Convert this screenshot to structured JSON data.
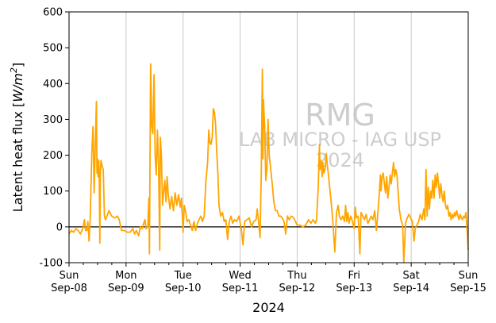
{
  "chart_data": {
    "type": "line",
    "title": "",
    "xlabel": "2024",
    "ylabel": "Latent heat flux [W/m²]",
    "ylabel_parts": {
      "text": "Latent heat flux [",
      "unit_base": "W/m",
      "unit_exp": "2",
      "close": "]"
    },
    "ylim": [
      -100,
      600
    ],
    "yticks": [
      -100,
      0,
      100,
      200,
      300,
      400,
      500,
      600
    ],
    "xlim_days": [
      0,
      7
    ],
    "xticks": [
      {
        "day": 0,
        "weekday": "Sun",
        "date": "Sep-08"
      },
      {
        "day": 1,
        "weekday": "Mon",
        "date": "Sep-09"
      },
      {
        "day": 2,
        "weekday": "Tue",
        "date": "Sep-10"
      },
      {
        "day": 3,
        "weekday": "Wed",
        "date": "Sep-11"
      },
      {
        "day": 4,
        "weekday": "Thu",
        "date": "Sep-12"
      },
      {
        "day": 5,
        "weekday": "Fri",
        "date": "Sep-13"
      },
      {
        "day": 6,
        "weekday": "Sat",
        "date": "Sep-14"
      },
      {
        "day": 7,
        "weekday": "Sun",
        "date": "Sep-15"
      }
    ],
    "grid": "vertical-major",
    "zero_line": true,
    "watermark": [
      "RMG",
      "LAB MICRO - IAG USP",
      "2024"
    ],
    "series": [
      {
        "color": "#FFA500",
        "points": [
          [
            0.0,
            -20
          ],
          [
            0.04,
            -10
          ],
          [
            0.08,
            -15
          ],
          [
            0.12,
            -5
          ],
          [
            0.16,
            -10
          ],
          [
            0.2,
            -20
          ],
          [
            0.24,
            -5
          ],
          [
            0.27,
            20
          ],
          [
            0.29,
            -10
          ],
          [
            0.31,
            -10
          ],
          [
            0.33,
            15
          ],
          [
            0.35,
            -40
          ],
          [
            0.37,
            20
          ],
          [
            0.4,
            205
          ],
          [
            0.42,
            280
          ],
          [
            0.43,
            200
          ],
          [
            0.44,
            95
          ],
          [
            0.46,
            230
          ],
          [
            0.48,
            350
          ],
          [
            0.49,
            150
          ],
          [
            0.5,
            190
          ],
          [
            0.51,
            140
          ],
          [
            0.52,
            185
          ],
          [
            0.53,
            130
          ],
          [
            0.54,
            -45
          ],
          [
            0.55,
            150
          ],
          [
            0.56,
            185
          ],
          [
            0.58,
            170
          ],
          [
            0.6,
            160
          ],
          [
            0.62,
            30
          ],
          [
            0.64,
            20
          ],
          [
            0.7,
            45
          ],
          [
            0.75,
            30
          ],
          [
            0.8,
            25
          ],
          [
            0.85,
            30
          ],
          [
            0.88,
            20
          ],
          [
            0.92,
            -10
          ],
          [
            0.97,
            -10
          ],
          [
            1.02,
            -15
          ],
          [
            1.07,
            -15
          ],
          [
            1.12,
            -5
          ],
          [
            1.15,
            -20
          ],
          [
            1.18,
            -10
          ],
          [
            1.22,
            -25
          ],
          [
            1.25,
            0
          ],
          [
            1.28,
            -5
          ],
          [
            1.31,
            10
          ],
          [
            1.33,
            20
          ],
          [
            1.35,
            -5
          ],
          [
            1.38,
            0
          ],
          [
            1.4,
            80
          ],
          [
            1.41,
            -75
          ],
          [
            1.43,
            455
          ],
          [
            1.45,
            280
          ],
          [
            1.47,
            260
          ],
          [
            1.49,
            425
          ],
          [
            1.51,
            200
          ],
          [
            1.53,
            145
          ],
          [
            1.55,
            270
          ],
          [
            1.57,
            175
          ],
          [
            1.59,
            -65
          ],
          [
            1.6,
            250
          ],
          [
            1.62,
            200
          ],
          [
            1.64,
            60
          ],
          [
            1.66,
            100
          ],
          [
            1.68,
            130
          ],
          [
            1.7,
            70
          ],
          [
            1.72,
            140
          ],
          [
            1.74,
            90
          ],
          [
            1.77,
            50
          ],
          [
            1.8,
            85
          ],
          [
            1.83,
            45
          ],
          [
            1.86,
            95
          ],
          [
            1.89,
            60
          ],
          [
            1.92,
            90
          ],
          [
            1.95,
            55
          ],
          [
            1.97,
            80
          ],
          [
            2.0,
            -15
          ],
          [
            2.02,
            60
          ],
          [
            2.04,
            45
          ],
          [
            2.07,
            15
          ],
          [
            2.1,
            20
          ],
          [
            2.13,
            5
          ],
          [
            2.16,
            -10
          ],
          [
            2.19,
            15
          ],
          [
            2.22,
            -10
          ],
          [
            2.25,
            10
          ],
          [
            2.28,
            20
          ],
          [
            2.31,
            30
          ],
          [
            2.34,
            15
          ],
          [
            2.37,
            30
          ],
          [
            2.4,
            130
          ],
          [
            2.43,
            180
          ],
          [
            2.45,
            270
          ],
          [
            2.47,
            235
          ],
          [
            2.49,
            230
          ],
          [
            2.51,
            250
          ],
          [
            2.53,
            330
          ],
          [
            2.55,
            320
          ],
          [
            2.57,
            285
          ],
          [
            2.59,
            210
          ],
          [
            2.61,
            150
          ],
          [
            2.63,
            60
          ],
          [
            2.66,
            30
          ],
          [
            2.69,
            40
          ],
          [
            2.72,
            15
          ],
          [
            2.75,
            20
          ],
          [
            2.78,
            -35
          ],
          [
            2.81,
            15
          ],
          [
            2.84,
            30
          ],
          [
            2.87,
            10
          ],
          [
            2.9,
            20
          ],
          [
            2.94,
            15
          ],
          [
            2.98,
            30
          ],
          [
            3.02,
            -5
          ],
          [
            3.05,
            -50
          ],
          [
            3.08,
            15
          ],
          [
            3.12,
            20
          ],
          [
            3.16,
            25
          ],
          [
            3.2,
            0
          ],
          [
            3.24,
            15
          ],
          [
            3.28,
            20
          ],
          [
            3.3,
            50
          ],
          [
            3.32,
            20
          ],
          [
            3.35,
            -30
          ],
          [
            3.37,
            150
          ],
          [
            3.39,
            440
          ],
          [
            3.4,
            190
          ],
          [
            3.41,
            355
          ],
          [
            3.43,
            280
          ],
          [
            3.45,
            130
          ],
          [
            3.47,
            160
          ],
          [
            3.49,
            300
          ],
          [
            3.51,
            200
          ],
          [
            3.53,
            170
          ],
          [
            3.55,
            140
          ],
          [
            3.57,
            110
          ],
          [
            3.59,
            70
          ],
          [
            3.62,
            45
          ],
          [
            3.65,
            45
          ],
          [
            3.68,
            30
          ],
          [
            3.71,
            30
          ],
          [
            3.74,
            25
          ],
          [
            3.77,
            15
          ],
          [
            3.8,
            -20
          ],
          [
            3.83,
            30
          ],
          [
            3.86,
            20
          ],
          [
            3.9,
            30
          ],
          [
            3.94,
            25
          ],
          [
            3.97,
            15
          ],
          [
            4.0,
            5
          ],
          [
            4.05,
            5
          ],
          [
            4.1,
            0
          ],
          [
            4.15,
            5
          ],
          [
            4.2,
            20
          ],
          [
            4.24,
            10
          ],
          [
            4.28,
            20
          ],
          [
            4.32,
            10
          ],
          [
            4.34,
            20
          ],
          [
            4.37,
            110
          ],
          [
            4.39,
            230
          ],
          [
            4.4,
            160
          ],
          [
            4.42,
            185
          ],
          [
            4.44,
            140
          ],
          [
            4.45,
            180
          ],
          [
            4.47,
            150
          ],
          [
            4.49,
            160
          ],
          [
            4.51,
            205
          ],
          [
            4.53,
            170
          ],
          [
            4.55,
            145
          ],
          [
            4.57,
            110
          ],
          [
            4.59,
            80
          ],
          [
            4.61,
            45
          ],
          [
            4.63,
            5
          ],
          [
            4.66,
            -70
          ],
          [
            4.69,
            40
          ],
          [
            4.72,
            60
          ],
          [
            4.74,
            30
          ],
          [
            4.77,
            20
          ],
          [
            4.8,
            30
          ],
          [
            4.83,
            15
          ],
          [
            4.85,
            60
          ],
          [
            4.87,
            15
          ],
          [
            4.89,
            40
          ],
          [
            4.91,
            10
          ],
          [
            4.94,
            30
          ],
          [
            4.97,
            15
          ],
          [
            5.0,
            -5
          ],
          [
            5.02,
            55
          ],
          [
            5.04,
            25
          ],
          [
            5.07,
            30
          ],
          [
            5.1,
            -75
          ],
          [
            5.12,
            40
          ],
          [
            5.15,
            30
          ],
          [
            5.18,
            20
          ],
          [
            5.21,
            35
          ],
          [
            5.24,
            10
          ],
          [
            5.27,
            20
          ],
          [
            5.3,
            30
          ],
          [
            5.33,
            20
          ],
          [
            5.36,
            45
          ],
          [
            5.39,
            -10
          ],
          [
            5.42,
            50
          ],
          [
            5.44,
            90
          ],
          [
            5.46,
            145
          ],
          [
            5.47,
            100
          ],
          [
            5.49,
            140
          ],
          [
            5.51,
            150
          ],
          [
            5.53,
            120
          ],
          [
            5.55,
            95
          ],
          [
            5.57,
            140
          ],
          [
            5.59,
            80
          ],
          [
            5.61,
            110
          ],
          [
            5.63,
            145
          ],
          [
            5.65,
            120
          ],
          [
            5.67,
            150
          ],
          [
            5.69,
            180
          ],
          [
            5.71,
            140
          ],
          [
            5.73,
            160
          ],
          [
            5.75,
            145
          ],
          [
            5.77,
            100
          ],
          [
            5.79,
            50
          ],
          [
            5.82,
            20
          ],
          [
            5.85,
            5
          ],
          [
            5.87,
            -100
          ],
          [
            5.9,
            10
          ],
          [
            5.93,
            25
          ],
          [
            5.96,
            35
          ],
          [
            5.99,
            25
          ],
          [
            6.02,
            15
          ],
          [
            6.05,
            -40
          ],
          [
            6.07,
            -5
          ],
          [
            6.1,
            5
          ],
          [
            6.13,
            15
          ],
          [
            6.16,
            35
          ],
          [
            6.19,
            20
          ],
          [
            6.22,
            50
          ],
          [
            6.24,
            20
          ],
          [
            6.26,
            160
          ],
          [
            6.28,
            30
          ],
          [
            6.3,
            110
          ],
          [
            6.32,
            50
          ],
          [
            6.34,
            100
          ],
          [
            6.36,
            80
          ],
          [
            6.38,
            130
          ],
          [
            6.4,
            80
          ],
          [
            6.42,
            145
          ],
          [
            6.44,
            110
          ],
          [
            6.46,
            150
          ],
          [
            6.48,
            120
          ],
          [
            6.5,
            80
          ],
          [
            6.52,
            120
          ],
          [
            6.54,
            90
          ],
          [
            6.56,
            70
          ],
          [
            6.58,
            100
          ],
          [
            6.6,
            60
          ],
          [
            6.62,
            50
          ],
          [
            6.64,
            60
          ],
          [
            6.66,
            30
          ],
          [
            6.68,
            40
          ],
          [
            6.7,
            20
          ],
          [
            6.72,
            35
          ],
          [
            6.74,
            25
          ],
          [
            6.76,
            40
          ],
          [
            6.78,
            30
          ],
          [
            6.8,
            45
          ],
          [
            6.82,
            30
          ],
          [
            6.84,
            20
          ],
          [
            6.86,
            35
          ],
          [
            6.88,
            25
          ],
          [
            6.9,
            20
          ],
          [
            6.92,
            30
          ],
          [
            6.94,
            25
          ],
          [
            6.96,
            40
          ],
          [
            6.98,
            -10
          ],
          [
            7.0,
            -65
          ]
        ]
      }
    ]
  }
}
